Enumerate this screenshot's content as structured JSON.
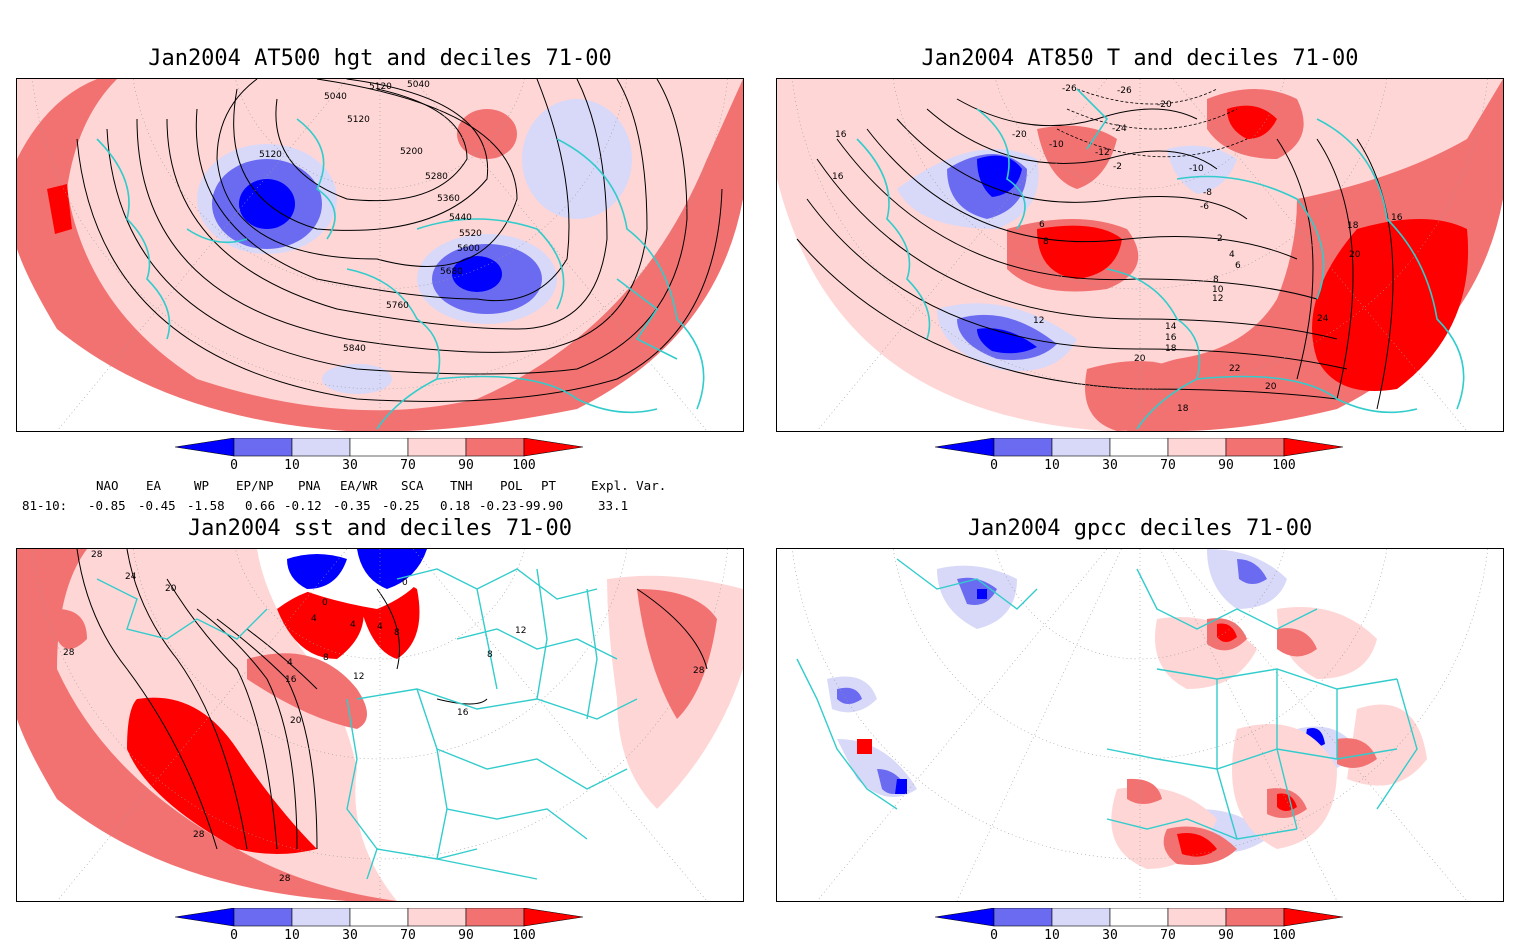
{
  "panels": [
    {
      "title": "Jan2004 AT500 hgt and deciles 71-00",
      "contour_labels": [
        "5040",
        "5040",
        "5120",
        "5120",
        "5120",
        "5200",
        "5280",
        "5360",
        "5440",
        "5520",
        "5600",
        "5680",
        "5760",
        "5840"
      ]
    },
    {
      "title": "Jan2004 AT850 T and deciles 71-00",
      "contour_labels": [
        "-26",
        "-26",
        "-24",
        "-20",
        "-20",
        "-10",
        "-12",
        "-10",
        "-8",
        "-6",
        "-2",
        "16",
        "16",
        "18",
        "16",
        "20",
        "6",
        "8",
        "2",
        "4",
        "6",
        "8",
        "10",
        "12",
        "12",
        "14",
        "16",
        "18",
        "20",
        "24",
        "22",
        "20",
        "18"
      ]
    },
    {
      "title": "Jan2004 sst and deciles 71-00",
      "contour_labels": [
        "28",
        "24",
        "20",
        "28",
        "0",
        "0",
        "4",
        "4",
        "4",
        "8",
        "4",
        "8",
        "16",
        "12",
        "20",
        "16",
        "8",
        "12",
        "28",
        "28",
        "28"
      ]
    },
    {
      "title": "Jan2004 gpcc deciles 71-00",
      "contour_labels": []
    }
  ],
  "colorbar": {
    "ticks": [
      "0",
      "10",
      "30",
      "70",
      "90",
      "100"
    ],
    "colors": [
      "#0000ff",
      "#6b6bf2",
      "#d8d8f8",
      "#ffffff",
      "#ffd6d6",
      "#f27272",
      "#ff0000"
    ]
  },
  "indices": {
    "headers": [
      "NAO",
      "EA",
      "WP",
      "EP/NP",
      "PNA",
      "EA/WR",
      "SCA",
      "TNH",
      "POL",
      "PT",
      "Expl. Var."
    ],
    "row_label": "81-10:",
    "values": [
      "-0.85",
      "-0.45",
      "-1.58",
      "0.66",
      "-0.12",
      "-0.35",
      "-0.25",
      "0.18",
      "-0.23",
      "-99.90",
      "33.1"
    ]
  },
  "colors": {
    "coast": "#33cccc",
    "strong_red": "#ff0000",
    "mid_red": "#f27272",
    "light_red": "#ffd6d6",
    "strong_blue": "#0000ff",
    "mid_blue": "#6b6bf2",
    "light_blue": "#d8d8f8"
  }
}
